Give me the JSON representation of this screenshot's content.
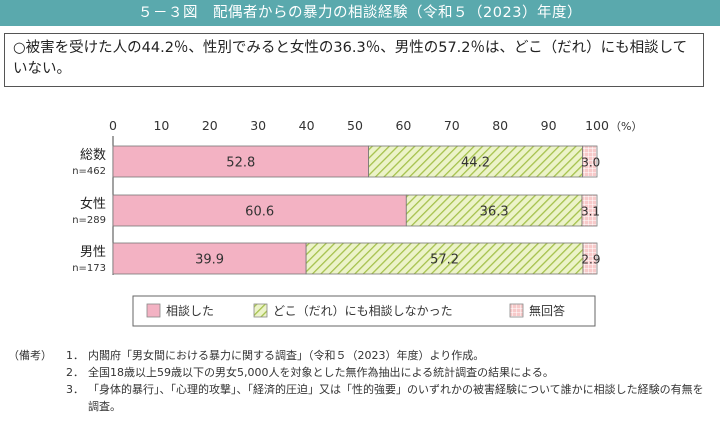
{
  "title": "５－３図　配偶者からの暴力の相談経験（令和５（2023）年度）",
  "summary": "○被害を受けた人の44.2％、性別でみると女性の36.3％、男性の57.2％は、どこ（だれ）にも相談していない。",
  "chart_data": {
    "type": "bar",
    "orientation": "horizontal",
    "stacked": true,
    "categories": [
      "総数",
      "女性",
      "男性"
    ],
    "category_sublabels": [
      "n=462",
      "n=289",
      "n=173"
    ],
    "series": [
      {
        "name": "相談した",
        "values": [
          52.8,
          60.6,
          39.9
        ],
        "color": "#f3b2c3"
      },
      {
        "name": "どこ（だれ）にも相談しなかった",
        "values": [
          44.2,
          36.3,
          57.2
        ],
        "color": "#dbe8a8"
      },
      {
        "name": "無回答",
        "values": [
          3.0,
          3.1,
          2.9
        ],
        "color": "#f7c9c9"
      }
    ],
    "xlim": [
      0,
      100
    ],
    "xticks": [
      "0",
      "10",
      "20",
      "30",
      "40",
      "50",
      "60",
      "70",
      "80",
      "90",
      "100"
    ],
    "x_unit": "（%）",
    "legend": "bottom",
    "grid": false
  },
  "notes_heading": "（備考）",
  "notes": [
    {
      "num": "1．",
      "text": "内閣府「男女間における暴力に関する調査」（令和５（2023）年度）より作成。"
    },
    {
      "num": "2．",
      "text": "全国18歳以上59歳以下の男女5,000人を対象とした無作為抽出による統計調査の結果による。"
    },
    {
      "num": "3．",
      "text": "「身体的暴行」、「心理的攻撃」、「経済的圧迫」又は「性的強要」のいずれかの被害経験について誰かに相談した経験の有無を調査。"
    }
  ]
}
